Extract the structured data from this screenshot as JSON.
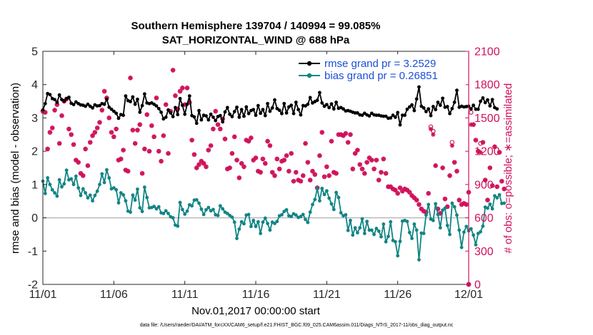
{
  "chart_data": {
    "type": "line",
    "title": "Southern Hemisphere 139704 / 140994 = 99.085%",
    "subtitle": "SAT_HORIZONTAL_WIND @ 688 hPa",
    "xlabel": "Nov.01,2017 00:00:00 start",
    "ylabel": "rmse and bias (model - observation)",
    "y2label": "# of obs: o=possible; ∗=assimilated",
    "footnote": "data file: /Users/raeder/DAI/ATM_forcXX/CAM6_setup/f.e21.FHIST_BGC.f09_025.CAM6assim.011/Diags_NTrS_2017-11/obs_diag_output.nc",
    "xlim": [
      0,
      30
    ],
    "ylim": [
      -2,
      5
    ],
    "y2lim": [
      0,
      2100
    ],
    "x_ticks": [
      0,
      5,
      10,
      15,
      20,
      25,
      30
    ],
    "x_tick_labels": [
      "11/01",
      "11/06",
      "11/11",
      "11/16",
      "11/21",
      "11/26",
      "12/01"
    ],
    "y_ticks": [
      -2,
      -1,
      0,
      1,
      2,
      3,
      4,
      5
    ],
    "y_tick_labels": [
      "-2",
      "-1",
      "0",
      "1",
      "2",
      "3",
      "4",
      "5"
    ],
    "y2_ticks": [
      0,
      300,
      600,
      900,
      1200,
      1500,
      1800,
      2100
    ],
    "y2_tick_labels": [
      "0",
      "300",
      "600",
      "900",
      "1200",
      "1500",
      "1800",
      "2100"
    ],
    "grid": false,
    "legend_position": "top-right",
    "colors": {
      "rmse": "#000000",
      "bias": "#118484",
      "obs": "#d0105a",
      "legend_text": "#1a4fd8",
      "zero_line": "#b4b4b4"
    },
    "series": [
      {
        "name": "rmse grand pr = 3.2529",
        "values": [
          3.24,
          3.43,
          3.73,
          3.7,
          3.58,
          3.55,
          3.47,
          3.69,
          3.55,
          3.51,
          3.58,
          3.62,
          3.44,
          3.4,
          3.48,
          3.43,
          3.39,
          3.38,
          3.35,
          3.41,
          3.35,
          3.3,
          3.39,
          3.36,
          3.37,
          3.43,
          3.41,
          3.56,
          3.32,
          3.26,
          3.2,
          3.14,
          2.99,
          3.1,
          3.08,
          3.66,
          3.52,
          3.49,
          3.63,
          3.41,
          3.56,
          3.17,
          3.37,
          3.72,
          3.45,
          3.43,
          3.45,
          3.41,
          3.36,
          3.28,
          3.17,
          2.97,
          3.02,
          3.24,
          3.15,
          3.04,
          3.31,
          3.1,
          3.58,
          3.38,
          3.11,
          3.41,
          3.66,
          3.07,
          3.03,
          2.84,
          3.22,
          2.94,
          3.08,
          3.06,
          2.94,
          3.11,
          3.02,
          2.92,
          3.04,
          3.07,
          2.88,
          3.18,
          3.31,
          3.11,
          3.04,
          3.19,
          3.32,
          3.02,
          3.25,
          3.05,
          3.33,
          3.13,
          3.22,
          3.25,
          3.08,
          3.37,
          3.14,
          3.25,
          3.07,
          3.43,
          3.2,
          3.3,
          3.54,
          3.28,
          3.23,
          3.13,
          3.43,
          3.15,
          3.33,
          3.38,
          3.13,
          3.47,
          3.25,
          3.09,
          3.37,
          3.36,
          3.41,
          3.61,
          3.45,
          3.49,
          3.53,
          3.76,
          3.45,
          3.35,
          3.4,
          3.31,
          3.42,
          3.27,
          3.47,
          3.29,
          3.31,
          3.27,
          3.21,
          3.22,
          3.2,
          3.17,
          3.15,
          3.15,
          3.09,
          3.08,
          3.14,
          3.09,
          3.06,
          3.14,
          3.09,
          3.08,
          3.08,
          3.06,
          3.05,
          3.05,
          2.99,
          3.0,
          3.08,
          3.02,
          3.16,
          2.79,
          3.08,
          3.08,
          3.26,
          3.33,
          3.39,
          3.22,
          3.57,
          3.93,
          3.35,
          3.3,
          3.19,
          3.27,
          3.07,
          3.34,
          3.25,
          3.47,
          3.38,
          3.59,
          3.32,
          3.34,
          3.13,
          3.28,
          3.47,
          3.83,
          3.32,
          3.35,
          3.33,
          3.34,
          3.35,
          3.27,
          3.38,
          3.26,
          3.26,
          3.5,
          3.6,
          3.46,
          3.54,
          3.36,
          3.55,
          3.31,
          3.27
        ],
        "color": "#000000",
        "marker": "circle"
      },
      {
        "name": "bias grand pr = 0.26851",
        "values": [
          1.1,
          0.73,
          1.2,
          1.0,
          0.84,
          0.75,
          0.65,
          1.14,
          0.93,
          1.02,
          1.43,
          1.14,
          1.17,
          1.0,
          1.25,
          0.9,
          0.67,
          0.87,
          0.75,
          0.6,
          0.68,
          0.51,
          0.67,
          0.8,
          1.0,
          1.32,
          1.06,
          1.44,
          1.2,
          0.87,
          0.9,
          0.84,
          0.45,
          0.75,
          0.69,
          0.51,
          0.2,
          0.17,
          0.68,
          0.53,
          0.86,
          0.3,
          0.19,
          0.92,
          0.61,
          0.3,
          0.31,
          0.34,
          0.27,
          0.33,
          0.15,
          0.13,
          0.21,
          0.13,
          0.03,
          0.0,
          -0.22,
          -0.25,
          0.46,
          0.25,
          0.11,
          0.2,
          0.39,
          0.36,
          0.53,
          0.54,
          0.44,
          0.26,
          0.1,
          0.24,
          0.31,
          0.21,
          0.25,
          0.09,
          0.07,
          0.36,
          0.27,
          0.17,
          0.13,
          0.07,
          0.02,
          -0.13,
          -0.62,
          -0.34,
          -0.12,
          -0.18,
          0.08,
          0.1,
          -0.26,
          -0.08,
          -0.26,
          -0.12,
          -0.47,
          -0.13,
          -0.01,
          -0.17,
          -0.37,
          -0.13,
          -0.17,
          -0.11,
          0.06,
          0.09,
          0.19,
          0.24,
          0.06,
          0.04,
          0.12,
          0.08,
          0.01,
          0.04,
          0.1,
          -0.05,
          -0.14,
          0.17,
          0.4,
          0.55,
          0.88,
          0.51,
          0.88,
          0.7,
          0.81,
          0.59,
          0.42,
          0.25,
          0.76,
          0.61,
          0.15,
          0.06,
          0.09,
          -0.38,
          -0.08,
          -0.52,
          -0.3,
          -0.45,
          -0.3,
          -0.03,
          -0.47,
          -0.11,
          -0.37,
          -0.37,
          -0.5,
          -0.32,
          -0.4,
          -0.57,
          -0.19,
          -0.72,
          -0.56,
          -0.12,
          -0.68,
          -0.72,
          -1.14,
          -0.71,
          -0.1,
          -0.08,
          -0.11,
          -0.44,
          -0.62,
          -0.19,
          -0.37,
          -1.26,
          -0.46,
          -0.47,
          0.08,
          0.4,
          -0.04,
          -0.08,
          0.42,
          0.1,
          -0.3,
          0.23,
          0.29,
          -0.23,
          -0.5,
          0.44,
          0.33,
          0.08,
          -0.37,
          -0.89,
          -0.43,
          -0.26,
          -0.39,
          -0.33,
          -0.52,
          -0.81,
          -0.47,
          -0.42,
          -0.25,
          0.32,
          0.29,
          0.41,
          0.27,
          0.66,
          0.6,
          0.69,
          0.43,
          0.44
        ],
        "color": "#118484",
        "marker": "circle"
      },
      {
        "name": "obs possible (o)",
        "values": [
          1560,
          1550,
          1220,
          1370,
          1410,
          1570,
          1620,
          1270,
          1520,
          1650,
          1670,
          1400,
          1350,
          1260,
          1120,
          1100,
          1000,
          980,
          1220,
          1070,
          1280,
          1340,
          1370,
          1410,
          1460,
          1570,
          1740,
          1680,
          1500,
          1370,
          1330,
          1400,
          1120,
          1130,
          1210,
          1030,
          1020,
          1860,
          1390,
          1270,
          1390,
          1440,
          1000,
          1220,
          1530,
          1200,
          1430,
          1330,
          1680,
          1200,
          1110,
          1340,
          1620,
          1180,
          1560,
          1930,
          1700,
          1580,
          1740,
          1770,
          1620,
          1770,
          1640,
          1300,
          1170,
          1050,
          1080,
          1110,
          1090,
          1060,
          1210,
          1250,
          1400,
          1560,
          1440,
          1400,
          1490,
          1310,
          1040,
          1050,
          1180,
          1330,
          1120,
          960,
          1090,
          1060,
          1300,
          1290,
          1320,
          1120,
          1140,
          1020,
          1010,
          1130,
          1090,
          1290,
          1250,
          1010,
          980,
          1130,
          1040,
          1110,
          1120,
          1160,
          1020,
          1180,
          930,
          1010,
          940,
          930,
          980,
          1270,
          1100,
          940,
          1020,
          990,
          870,
          1160,
          1370,
          970,
          1060,
          980,
          1290,
          1010,
          1000,
          1350,
          1350,
          1340,
          1360,
          1280,
          1350,
          1040,
          1180,
          1210,
          1080,
          1040,
          1000,
          1100,
          1140,
          1120,
          1040,
          1120,
          940,
          1010,
          1130,
          1000,
          880,
          880,
          860,
          850,
          820,
          870,
          840,
          860,
          850,
          830,
          800,
          780,
          760,
          720,
          680,
          660,
          650,
          820,
          1420,
          1380,
          1070,
          680,
          640,
          1050,
          770,
          700,
          980,
          1280,
          1100,
          1020,
          760,
          720,
          730,
          720,
          830,
          1550,
          1440,
          1300,
          1200,
          1270,
          1280,
          940,
          760,
          1050,
          890,
          1240,
          880,
          1190,
          930,
          860
        ],
        "color": "#d0105a",
        "marker": "o"
      },
      {
        "name": "obs assimilated (∗)",
        "values": [
          1560,
          1550,
          1220,
          1370,
          1410,
          1570,
          1620,
          1270,
          1520,
          1650,
          1670,
          1400,
          1350,
          1260,
          1120,
          1100,
          1000,
          980,
          1220,
          1070,
          1280,
          1340,
          1370,
          1410,
          1460,
          1570,
          1740,
          1680,
          1500,
          1370,
          1330,
          1400,
          1120,
          1130,
          1210,
          1030,
          1020,
          1860,
          1390,
          1270,
          1390,
          1440,
          1000,
          1220,
          1530,
          1200,
          1430,
          1330,
          1680,
          1200,
          1110,
          1340,
          1620,
          1180,
          1560,
          1930,
          1700,
          1580,
          1740,
          1770,
          1620,
          1770,
          1640,
          1300,
          1170,
          1050,
          1080,
          1110,
          1090,
          1060,
          1210,
          1250,
          1400,
          1560,
          1440,
          1400,
          1490,
          1310,
          1040,
          1050,
          1180,
          1330,
          1120,
          960,
          1090,
          1060,
          1300,
          1290,
          1320,
          1120,
          1140,
          1020,
          1010,
          1130,
          1090,
          1290,
          1250,
          1010,
          980,
          1130,
          1040,
          1110,
          1120,
          1160,
          1020,
          1180,
          930,
          1010,
          940,
          930,
          980,
          1270,
          1100,
          940,
          1020,
          990,
          870,
          1160,
          1370,
          970,
          1060,
          980,
          1290,
          1010,
          1000,
          1350,
          1350,
          1340,
          1360,
          1280,
          1350,
          1040,
          1180,
          1210,
          1080,
          1040,
          1000,
          1100,
          1140,
          1120,
          1040,
          1120,
          940,
          1010,
          1130,
          1000,
          880,
          880,
          860,
          850,
          820,
          870,
          840,
          860,
          850,
          830,
          800,
          780,
          760,
          720,
          680,
          660,
          650,
          820,
          1400,
          1350,
          1070,
          680,
          640,
          1050,
          770,
          700,
          980,
          1250,
          1100,
          1020,
          760,
          720,
          730,
          720,
          830,
          1440,
          1440,
          1300,
          1200,
          1190,
          1280,
          940,
          760,
          1050,
          890,
          1240,
          880,
          1190,
          930,
          860
        ],
        "color": "#d0105a",
        "marker": "asterisk"
      }
    ],
    "x_step": 0.166667
  }
}
